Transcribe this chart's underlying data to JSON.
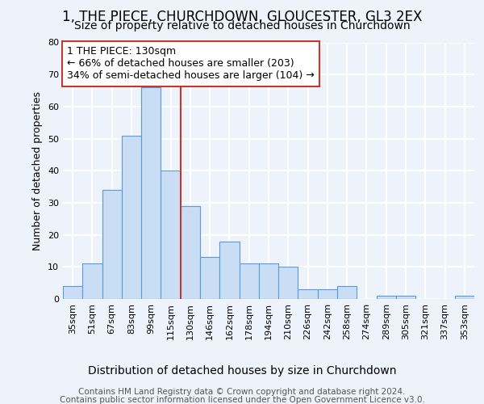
{
  "title": "1, THE PIECE, CHURCHDOWN, GLOUCESTER, GL3 2EX",
  "subtitle": "Size of property relative to detached houses in Churchdown",
  "xlabel": "Distribution of detached houses by size in Churchdown",
  "ylabel": "Number of detached properties",
  "categories": [
    "35sqm",
    "51sqm",
    "67sqm",
    "83sqm",
    "99sqm",
    "115sqm",
    "130sqm",
    "146sqm",
    "162sqm",
    "178sqm",
    "194sqm",
    "210sqm",
    "226sqm",
    "242sqm",
    "258sqm",
    "274sqm",
    "289sqm",
    "305sqm",
    "321sqm",
    "337sqm",
    "353sqm"
  ],
  "values": [
    4,
    11,
    34,
    51,
    66,
    40,
    29,
    13,
    18,
    11,
    11,
    10,
    3,
    3,
    4,
    0,
    1,
    1,
    0,
    0,
    1
  ],
  "bar_color": "#c9ddf5",
  "bar_edge_color": "#5b9bd5",
  "ylim": [
    0,
    80
  ],
  "yticks": [
    0,
    10,
    20,
    30,
    40,
    50,
    60,
    70,
    80
  ],
  "vline_x": 6,
  "vline_color": "#c0392b",
  "annotation_line1": "1 THE PIECE: 130sqm",
  "annotation_line2": "← 66% of detached houses are smaller (203)",
  "annotation_line3": "34% of semi-detached houses are larger (104) →",
  "annotation_box_color": "#ffffff",
  "annotation_box_edge": "#c0392b",
  "background_color": "#eef2fb",
  "grid_color": "#ffffff",
  "title_fontsize": 12,
  "subtitle_fontsize": 10,
  "ylabel_fontsize": 9,
  "xlabel_fontsize": 10,
  "tick_fontsize": 8,
  "annotation_fontsize": 9,
  "footer_fontsize": 7.5,
  "footer1": "Contains HM Land Registry data © Crown copyright and database right 2024.",
  "footer2": "Contains public sector information licensed under the Open Government Licence v3.0."
}
